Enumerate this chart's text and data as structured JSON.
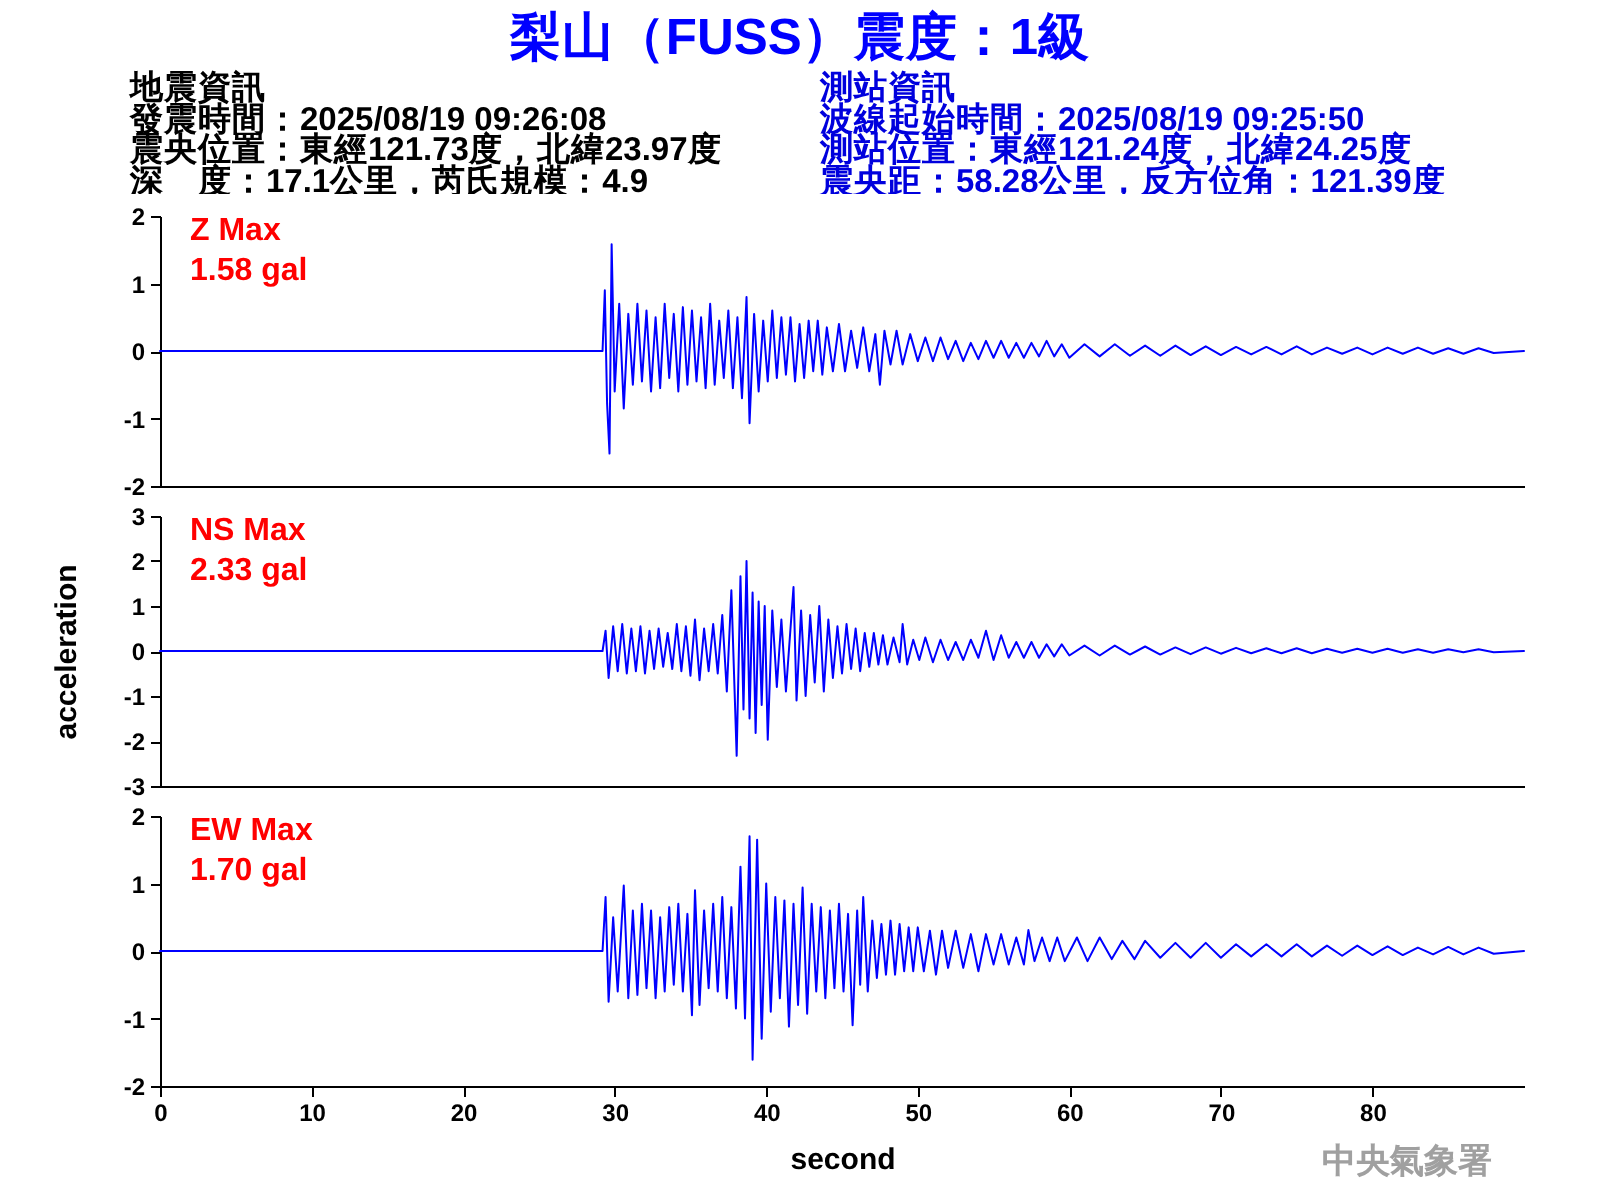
{
  "chart_data": [
    {
      "type": "line",
      "title": "梨山（FUSS）震度：1級",
      "annotations": [
        "Z Max",
        "1.58 gal",
        "地震資訊",
        "發震時間：2025/08/19 09:26:08",
        "震央位置：東經121.73度，北緯23.97度",
        "深　度：17.1公里，芮氏規模：4.9",
        "測站資訊",
        "波線起始時間：2025/08/19 09:25:50",
        "測站位置：東經121.24度，北緯24.25度",
        "震央距：58.28公里，反方位角：121.39度"
      ],
      "color": "#0000ff",
      "x": [
        0,
        29.2,
        29.35,
        29.5,
        29.66,
        29.8,
        30,
        30.3,
        30.6,
        30.9,
        31.2,
        31.5,
        31.8,
        32.1,
        32.4,
        32.7,
        33,
        33.3,
        33.6,
        33.9,
        34.2,
        34.5,
        34.8,
        35.1,
        35.4,
        35.7,
        36,
        36.3,
        36.6,
        36.9,
        37.2,
        37.5,
        37.8,
        38.1,
        38.4,
        38.7,
        38.9,
        39.2,
        39.5,
        39.8,
        40.1,
        40.4,
        40.7,
        41,
        41.3,
        41.6,
        41.9,
        42.2,
        42.5,
        42.8,
        43.1,
        43.4,
        43.7,
        44,
        44.4,
        44.8,
        45.2,
        45.6,
        46,
        46.4,
        46.8,
        47.2,
        47.5,
        47.8,
        48.2,
        48.6,
        49,
        49.5,
        50,
        50.5,
        51,
        51.5,
        52,
        52.5,
        53,
        53.5,
        54,
        54.5,
        55,
        55.5,
        56,
        56.5,
        57,
        57.5,
        58,
        58.5,
        59,
        59.5,
        60,
        61,
        62,
        63,
        64,
        65,
        66,
        67,
        68,
        69,
        70,
        71,
        72,
        73,
        74,
        75,
        76,
        77,
        78,
        79,
        80,
        81,
        82,
        83,
        84,
        85,
        86,
        87,
        88,
        90
      ],
      "values": [
        0,
        0,
        0.9,
        -0.78,
        -1.52,
        1.58,
        -0.6,
        0.7,
        -0.85,
        0.55,
        -0.5,
        0.7,
        -0.45,
        0.6,
        -0.6,
        0.5,
        -0.55,
        0.7,
        -0.4,
        0.55,
        -0.6,
        0.65,
        -0.5,
        0.6,
        -0.45,
        0.5,
        -0.55,
        0.7,
        -0.5,
        0.45,
        -0.4,
        0.6,
        -0.55,
        0.5,
        -0.7,
        0.8,
        -1.07,
        0.55,
        -0.6,
        0.45,
        -0.45,
        0.6,
        -0.4,
        0.5,
        -0.35,
        0.5,
        -0.45,
        0.4,
        -0.4,
        0.45,
        -0.3,
        0.45,
        -0.35,
        0.35,
        -0.3,
        0.4,
        -0.3,
        0.3,
        -0.25,
        0.35,
        -0.3,
        0.25,
        -0.5,
        0.3,
        -0.2,
        0.3,
        -0.2,
        0.25,
        -0.15,
        0.2,
        -0.15,
        0.2,
        -0.12,
        0.15,
        -0.15,
        0.12,
        -0.12,
        0.15,
        -0.1,
        0.15,
        -0.1,
        0.12,
        -0.1,
        0.12,
        -0.08,
        0.15,
        -0.08,
        0.1,
        -0.1,
        0.1,
        -0.08,
        0.1,
        -0.07,
        0.08,
        -0.07,
        0.08,
        -0.06,
        0.07,
        -0.06,
        0.06,
        -0.05,
        0.06,
        -0.05,
        0.07,
        -0.05,
        0.05,
        -0.04,
        0.05,
        -0.05,
        0.05,
        -0.04,
        0.05,
        -0.04,
        0.04,
        -0.04,
        0.04,
        -0.03,
        0
      ],
      "xlim": [
        0,
        90
      ],
      "ylim": [
        -2,
        2
      ],
      "yticks": [
        -2,
        -1,
        0,
        1,
        2
      ],
      "tick_labels": "y"
    },
    {
      "type": "line",
      "ylabel": "acceleration",
      "annotations": [
        "NS Max",
        "2.33 gal"
      ],
      "color": "#0000ff",
      "x": [
        0,
        29.2,
        29.4,
        29.6,
        29.9,
        30.2,
        30.5,
        30.8,
        31.1,
        31.4,
        31.7,
        32,
        32.3,
        32.6,
        32.9,
        33.2,
        33.5,
        33.8,
        34.1,
        34.4,
        34.7,
        35,
        35.3,
        35.6,
        35.9,
        36.2,
        36.5,
        36.8,
        37.1,
        37.4,
        37.7,
        38.05,
        38.3,
        38.5,
        38.7,
        38.9,
        39.1,
        39.3,
        39.5,
        39.7,
        39.9,
        40.1,
        40.4,
        40.7,
        41,
        41.3,
        41.8,
        42,
        42.3,
        42.6,
        42.9,
        43.2,
        43.5,
        43.8,
        44.1,
        44.4,
        44.7,
        45,
        45.3,
        45.6,
        45.9,
        46.2,
        46.5,
        46.8,
        47.1,
        47.4,
        47.7,
        48,
        48.4,
        48.8,
        49,
        49.3,
        49.7,
        50.1,
        50.5,
        51,
        51.5,
        52,
        52.5,
        53,
        53.5,
        54,
        54.5,
        55,
        55.5,
        56,
        56.5,
        57,
        57.5,
        58,
        58.5,
        59,
        59.5,
        60,
        61,
        62,
        63,
        64,
        65,
        66,
        67,
        68,
        69,
        70,
        71,
        72,
        73,
        74,
        75,
        76,
        77,
        78,
        79,
        80,
        81,
        82,
        83,
        84,
        85,
        86,
        87,
        88,
        90
      ],
      "values": [
        0,
        0,
        0.45,
        -0.6,
        0.55,
        -0.45,
        0.6,
        -0.5,
        0.5,
        -0.45,
        0.55,
        -0.5,
        0.45,
        -0.4,
        0.5,
        -0.35,
        0.4,
        -0.4,
        0.6,
        -0.45,
        0.55,
        -0.55,
        0.7,
        -0.65,
        0.5,
        -0.45,
        0.6,
        -0.5,
        0.8,
        -0.9,
        1.35,
        -2.33,
        1.66,
        -1.3,
        2.0,
        -1.5,
        1.3,
        -1.82,
        1.1,
        -1.2,
        1.0,
        -1.97,
        0.9,
        -0.8,
        0.7,
        -0.9,
        1.42,
        -1.1,
        0.9,
        -1.0,
        0.8,
        -0.7,
        1.0,
        -0.9,
        0.7,
        -0.6,
        0.55,
        -0.5,
        0.6,
        -0.4,
        0.5,
        -0.45,
        0.4,
        -0.35,
        0.4,
        -0.3,
        0.35,
        -0.3,
        0.3,
        -0.25,
        0.6,
        -0.3,
        0.25,
        -0.2,
        0.3,
        -0.25,
        0.25,
        -0.2,
        0.2,
        -0.2,
        0.25,
        -0.15,
        0.45,
        -0.2,
        0.35,
        -0.15,
        0.2,
        -0.15,
        0.2,
        -0.15,
        0.15,
        -0.12,
        0.15,
        -0.1,
        0.12,
        -0.1,
        0.12,
        -0.08,
        0.1,
        -0.08,
        0.08,
        -0.07,
        0.08,
        -0.06,
        0.07,
        -0.05,
        0.06,
        -0.05,
        0.06,
        -0.05,
        0.05,
        -0.04,
        0.05,
        -0.04,
        0.05,
        -0.04,
        0.04,
        -0.04,
        0.04,
        -0.03,
        0.04,
        -0.03,
        0
      ],
      "xlim": [
        0,
        90
      ],
      "ylim": [
        -3,
        3
      ],
      "yticks": [
        -3,
        -2,
        -1,
        0,
        1,
        2,
        3
      ],
      "tick_labels": "y"
    },
    {
      "type": "line",
      "xlabel": "second",
      "annotations": [
        "EW Max",
        "1.70 gal",
        "中央氣象署"
      ],
      "color": "#0000ff",
      "x": [
        0,
        29.2,
        29.4,
        29.6,
        29.9,
        30.2,
        30.6,
        30.9,
        31.2,
        31.5,
        31.8,
        32.1,
        32.4,
        32.7,
        33,
        33.3,
        33.6,
        33.9,
        34.2,
        34.5,
        34.8,
        35.1,
        35.3,
        35.6,
        35.9,
        36.2,
        36.5,
        36.8,
        37.1,
        37.4,
        37.7,
        38,
        38.3,
        38.6,
        38.9,
        39.1,
        39.4,
        39.7,
        40,
        40.3,
        40.6,
        40.9,
        41.2,
        41.5,
        41.8,
        42.1,
        42.4,
        42.7,
        43,
        43.3,
        43.6,
        43.9,
        44.2,
        44.5,
        44.8,
        45.1,
        45.4,
        45.7,
        46,
        46.2,
        46.4,
        46.7,
        47,
        47.3,
        47.6,
        47.9,
        48.2,
        48.5,
        48.8,
        49.1,
        49.4,
        49.7,
        50,
        50.4,
        50.8,
        51.2,
        51.6,
        52,
        52.5,
        53,
        53.5,
        54,
        54.5,
        55,
        55.5,
        56,
        56.5,
        57,
        57.3,
        57.7,
        58.2,
        58.7,
        59.2,
        59.7,
        60.5,
        61.2,
        62,
        62.8,
        63.5,
        64.3,
        65,
        66,
        67,
        68,
        69,
        70,
        71,
        72,
        73,
        74,
        75,
        76,
        77,
        78,
        79,
        80,
        81,
        82,
        83,
        84,
        85,
        86,
        87,
        88,
        90
      ],
      "values": [
        0,
        0,
        0.8,
        -0.75,
        0.5,
        -0.6,
        0.97,
        -0.7,
        0.6,
        -0.65,
        0.7,
        -0.55,
        0.6,
        -0.7,
        0.5,
        -0.6,
        0.65,
        -0.5,
        0.7,
        -0.6,
        0.55,
        -0.95,
        0.9,
        -0.8,
        0.6,
        -0.55,
        0.7,
        -0.6,
        0.8,
        -0.7,
        0.65,
        -0.85,
        1.25,
        -1.0,
        1.7,
        -1.61,
        1.65,
        -1.3,
        1.0,
        -0.9,
        0.8,
        -0.7,
        0.75,
        -1.12,
        0.7,
        -0.8,
        0.94,
        -0.93,
        0.7,
        -0.6,
        0.65,
        -0.7,
        0.6,
        -0.55,
        0.7,
        -0.6,
        0.55,
        -1.1,
        0.6,
        -0.5,
        0.8,
        -0.6,
        0.45,
        -0.4,
        0.4,
        -0.35,
        0.45,
        -0.35,
        0.4,
        -0.3,
        0.35,
        -0.3,
        0.35,
        -0.3,
        0.3,
        -0.35,
        0.3,
        -0.25,
        0.3,
        -0.25,
        0.25,
        -0.3,
        0.25,
        -0.2,
        0.25,
        -0.2,
        0.2,
        -0.2,
        0.31,
        -0.15,
        0.2,
        -0.15,
        0.2,
        -0.15,
        0.2,
        -0.15,
        0.2,
        -0.12,
        0.15,
        -0.12,
        0.15,
        -0.1,
        0.12,
        -0.1,
        0.12,
        -0.1,
        0.1,
        -0.08,
        0.1,
        -0.08,
        0.1,
        -0.08,
        0.08,
        -0.07,
        0.08,
        -0.06,
        0.07,
        -0.06,
        0.05,
        -0.05,
        0.06,
        -0.05,
        0.05,
        -0.04,
        0
      ],
      "xlim": [
        0,
        90
      ],
      "xticks": [
        0,
        10,
        20,
        30,
        40,
        50,
        60,
        70,
        80
      ],
      "ylim": [
        -2,
        2
      ],
      "yticks": [
        -2,
        -1,
        0,
        1,
        2
      ]
    }
  ]
}
